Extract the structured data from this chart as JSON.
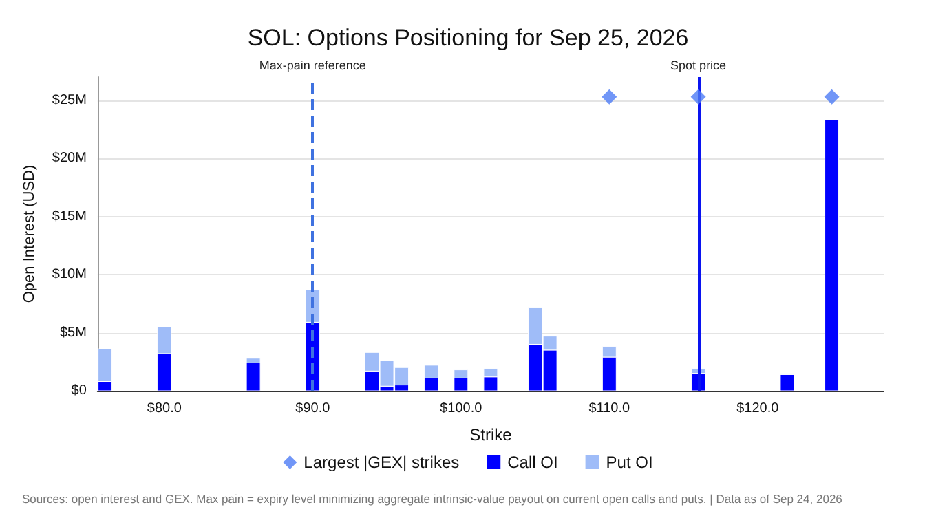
{
  "chart_data": {
    "type": "bar",
    "title": "SOL: Options Positioning for Sep 25, 2026",
    "xlabel": "Strike",
    "ylabel": "Open Interest (USD)",
    "x": [
      76,
      80,
      86,
      90,
      94,
      95,
      96,
      98,
      100,
      102,
      105,
      106,
      110,
      116,
      122,
      125
    ],
    "series": [
      {
        "name": "Largest |GEX| strikes",
        "type": "scatter",
        "marker": "diamond",
        "color": "#4d7cf5",
        "x": [
          110,
          116,
          125
        ],
        "values": [
          25.3,
          25.3,
          25.3
        ]
      },
      {
        "name": "Call OI",
        "color": "#0000ff",
        "values": [
          0.8,
          3.2,
          2.4,
          5.9,
          1.7,
          0.4,
          0.5,
          1.1,
          1.1,
          1.2,
          4.0,
          3.5,
          2.9,
          1.5,
          1.4,
          23.3
        ]
      },
      {
        "name": "Put OI",
        "color": "#9fbcf8",
        "values": [
          2.8,
          2.3,
          0.4,
          2.8,
          1.6,
          2.2,
          1.5,
          1.1,
          0.7,
          0.7,
          3.2,
          1.2,
          0.9,
          0.4,
          0.1,
          null
        ]
      }
    ],
    "stacked": true,
    "xlim": [
      75.5,
      128.5
    ],
    "xticks": [
      {
        "value": 80,
        "label": "$80.0"
      },
      {
        "value": 90,
        "label": "$90.0"
      },
      {
        "value": 100,
        "label": "$100.0"
      },
      {
        "value": 110,
        "label": "$110.0"
      },
      {
        "value": 120,
        "label": "$120.0"
      }
    ],
    "ylim": [
      0,
      27
    ],
    "yticks": [
      {
        "value": 0,
        "label": "$0"
      },
      {
        "value": 5,
        "label": "$5M"
      },
      {
        "value": 10,
        "label": "$10M"
      },
      {
        "value": 15,
        "label": "$15M"
      },
      {
        "value": 20,
        "label": "$20M"
      },
      {
        "value": 25,
        "label": "$25M"
      }
    ],
    "ref_lines": [
      {
        "axis": "x",
        "value": 90,
        "label": "Max-pain reference",
        "color": "#3f72e0",
        "line_style": "dashed"
      },
      {
        "axis": "x",
        "value": 116,
        "label": "Spot price",
        "color": "#0a14f0",
        "line_style": "solid"
      }
    ],
    "grid": "y",
    "legend": "bottom",
    "annotations": [
      "Sources: open interest and GEX. Max pain = expiry level minimizing aggregate intrinsic-value payout on current open calls and puts. | Data as of Sep 24, 2026"
    ]
  }
}
